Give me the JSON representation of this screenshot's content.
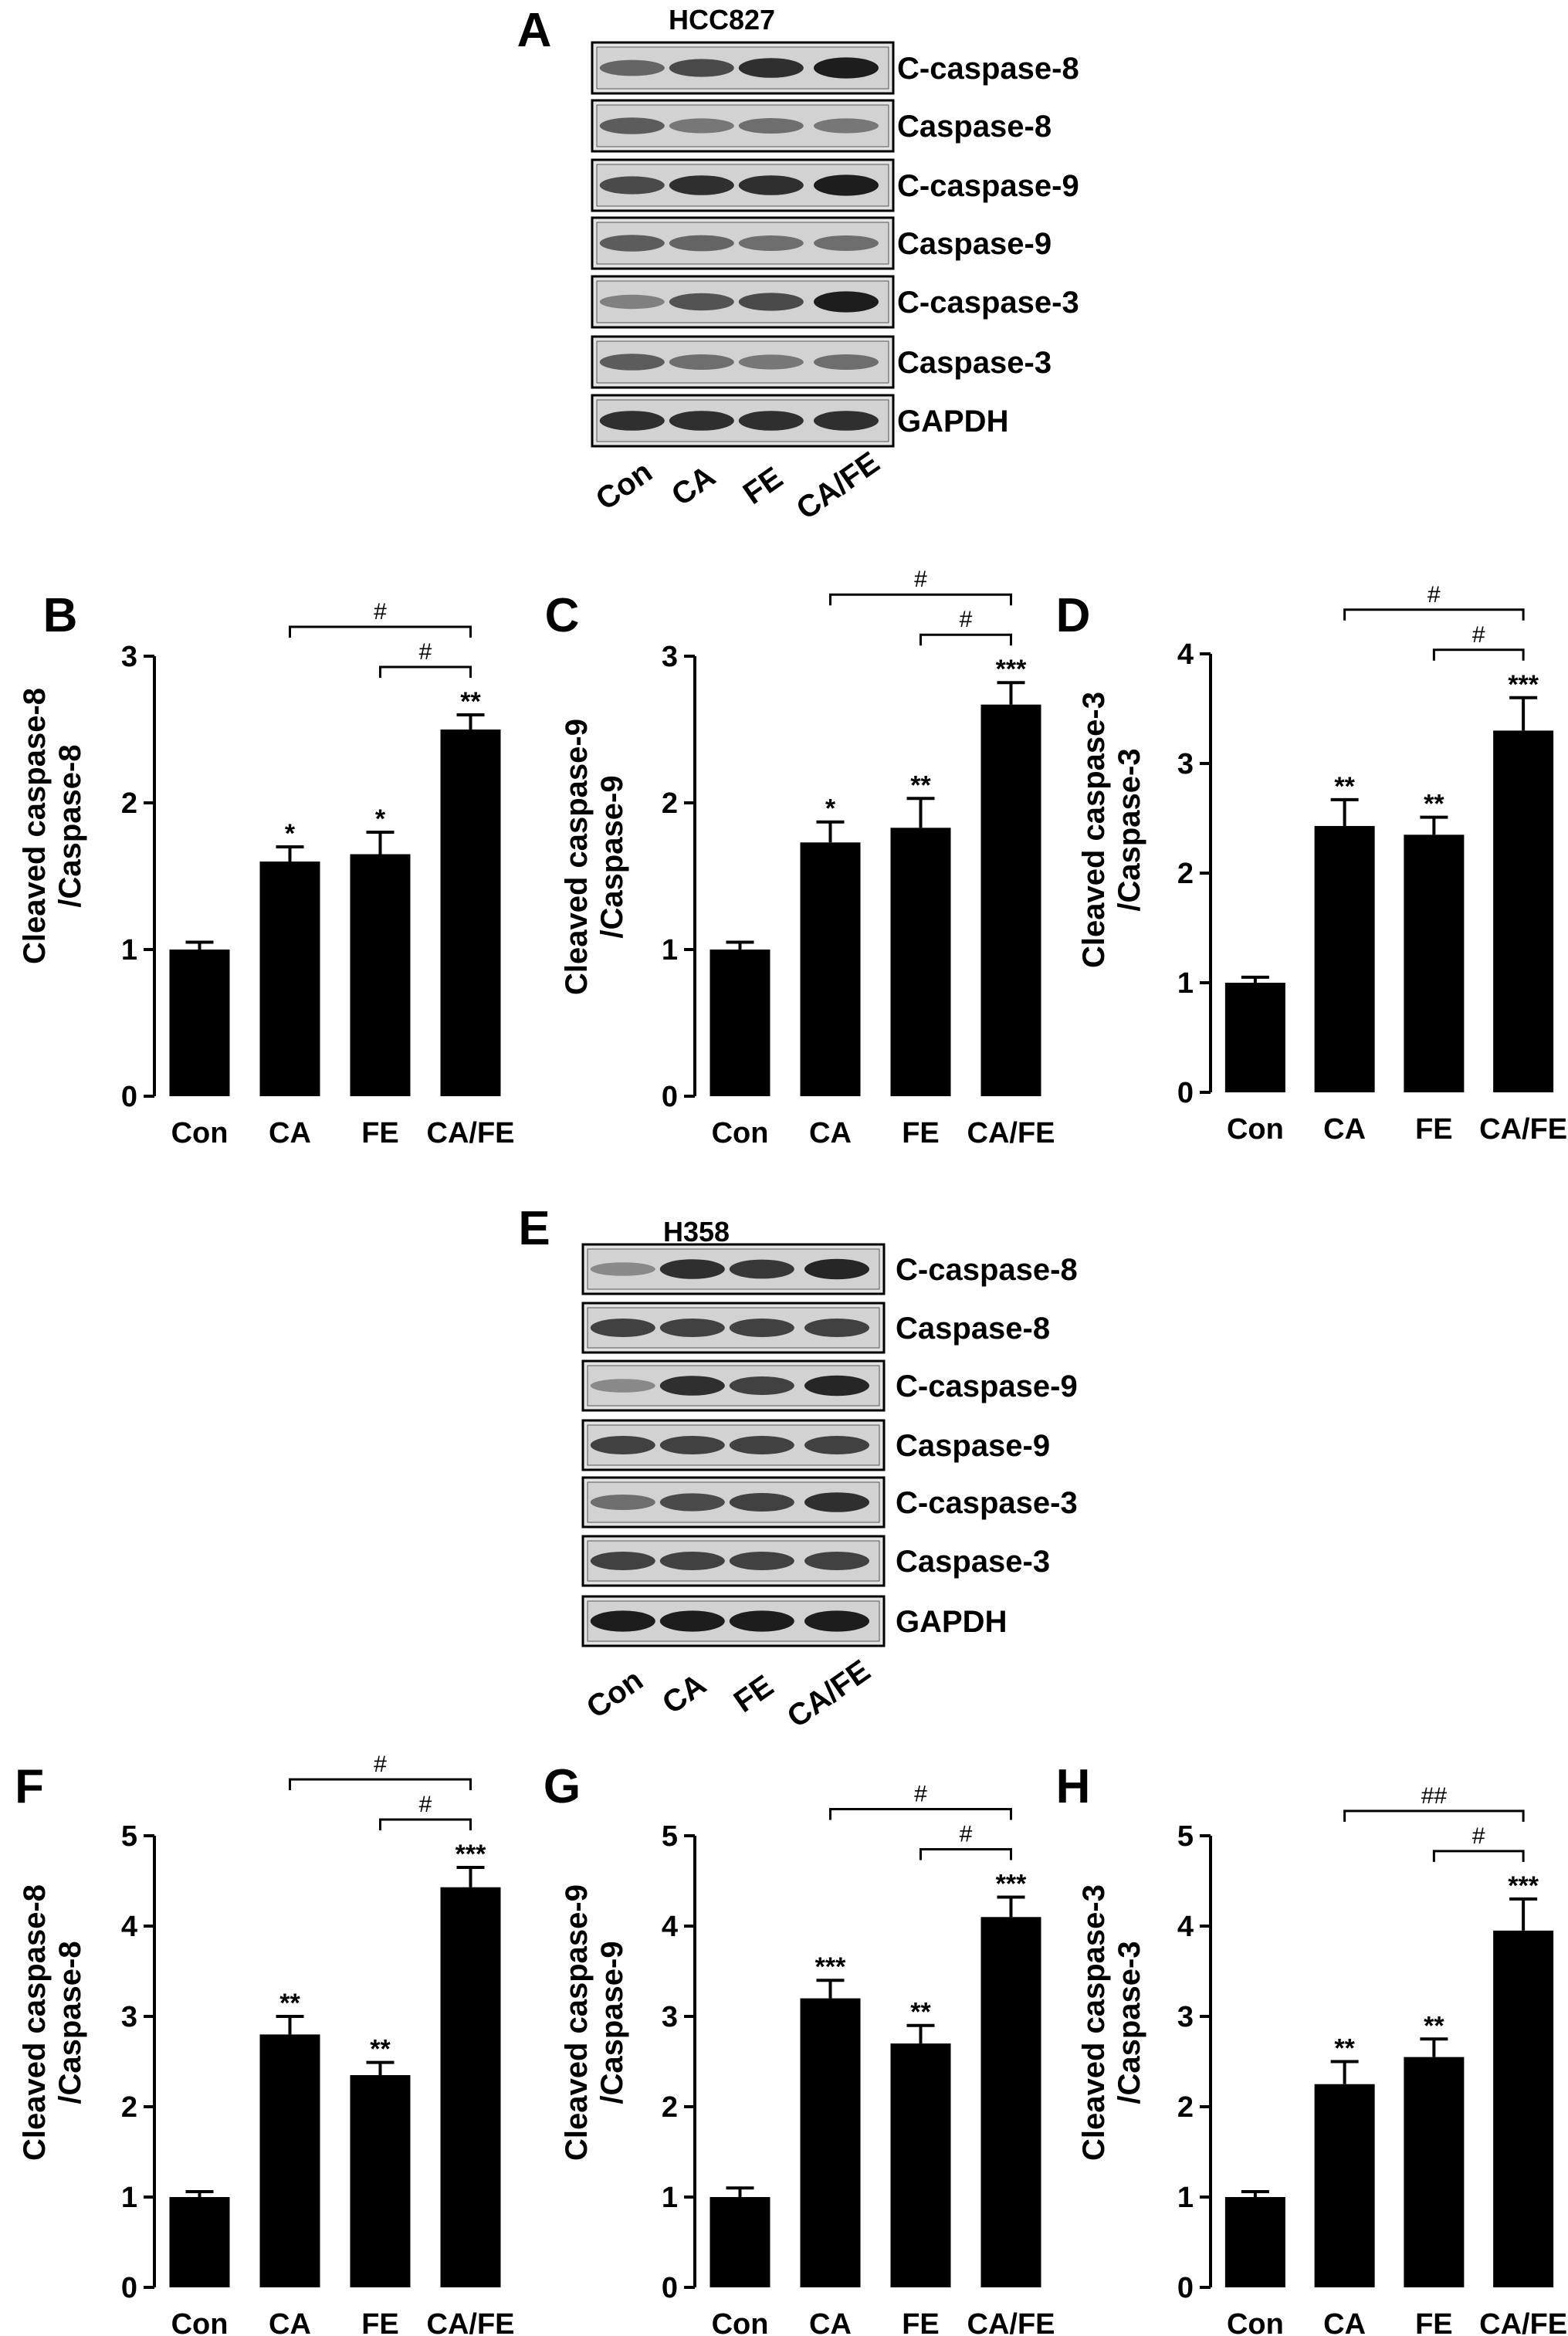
{
  "blots": [
    {
      "id": "A",
      "panel_label": "A",
      "cell_line": "HCC827",
      "rows": [
        "C-caspase-8",
        "Caspase-8",
        "C-caspase-9",
        "Caspase-9",
        "C-caspase-3",
        "Caspase-3",
        "GAPDH"
      ],
      "lanes": [
        "Con",
        "CA",
        "FE",
        "CA/FE"
      ],
      "intensity": [
        [
          0.55,
          0.7,
          0.85,
          0.95
        ],
        [
          0.6,
          0.45,
          0.5,
          0.45
        ],
        [
          0.7,
          0.85,
          0.85,
          0.95
        ],
        [
          0.6,
          0.55,
          0.5,
          0.5
        ],
        [
          0.4,
          0.65,
          0.7,
          0.95
        ],
        [
          0.6,
          0.5,
          0.45,
          0.5
        ],
        [
          0.85,
          0.85,
          0.85,
          0.85
        ]
      ]
    },
    {
      "id": "E",
      "panel_label": "E",
      "cell_line": "H358",
      "rows": [
        "C-caspase-8",
        "Caspase-8",
        "C-caspase-9",
        "Caspase-9",
        "C-caspase-3",
        "Caspase-3",
        "GAPDH"
      ],
      "lanes": [
        "Con",
        "CA",
        "FE",
        "CA/FE"
      ],
      "intensity": [
        [
          0.35,
          0.85,
          0.8,
          0.9
        ],
        [
          0.75,
          0.75,
          0.75,
          0.75
        ],
        [
          0.35,
          0.85,
          0.75,
          0.9
        ],
        [
          0.75,
          0.75,
          0.75,
          0.75
        ],
        [
          0.5,
          0.7,
          0.75,
          0.85
        ],
        [
          0.75,
          0.75,
          0.75,
          0.75
        ],
        [
          0.95,
          0.95,
          0.95,
          0.95
        ]
      ]
    }
  ],
  "chart_data": [
    {
      "panel_label": "B",
      "type": "bar",
      "categories": [
        "Con",
        "CA",
        "FE",
        "CA/FE"
      ],
      "values": [
        1.0,
        1.6,
        1.65,
        2.5
      ],
      "errors": [
        0.05,
        0.1,
        0.15,
        0.1
      ],
      "significance": [
        "",
        "*",
        "*",
        "**"
      ],
      "ylabel": [
        "Cleaved caspase-8",
        "/Caspase-8"
      ],
      "ylim": [
        0,
        3
      ],
      "yticks": [
        0,
        1,
        2,
        3
      ],
      "comparisons": [
        {
          "from": "CA",
          "to": "CA/FE",
          "label": "#"
        },
        {
          "from": "FE",
          "to": "CA/FE",
          "label": "#"
        }
      ]
    },
    {
      "panel_label": "C",
      "type": "bar",
      "categories": [
        "Con",
        "CA",
        "FE",
        "CA/FE"
      ],
      "values": [
        1.0,
        1.73,
        1.83,
        2.67
      ],
      "errors": [
        0.05,
        0.14,
        0.2,
        0.15
      ],
      "significance": [
        "",
        "*",
        "**",
        "***"
      ],
      "ylabel": [
        "Cleaved caspase-9",
        "/Caspase-9"
      ],
      "ylim": [
        0,
        3
      ],
      "yticks": [
        0,
        1,
        2,
        3
      ],
      "comparisons": [
        {
          "from": "CA",
          "to": "CA/FE",
          "label": "#"
        },
        {
          "from": "FE",
          "to": "CA/FE",
          "label": "#"
        }
      ]
    },
    {
      "panel_label": "D",
      "type": "bar",
      "categories": [
        "Con",
        "CA",
        "FE",
        "CA/FE"
      ],
      "values": [
        1.0,
        2.43,
        2.35,
        3.3
      ],
      "errors": [
        0.05,
        0.24,
        0.16,
        0.3
      ],
      "significance": [
        "",
        "**",
        "**",
        "***"
      ],
      "ylabel": [
        "Cleaved caspase-3",
        "/Caspase-3"
      ],
      "ylim": [
        0,
        4
      ],
      "yticks": [
        0,
        1,
        2,
        3,
        4
      ],
      "comparisons": [
        {
          "from": "CA",
          "to": "CA/FE",
          "label": "#"
        },
        {
          "from": "FE",
          "to": "CA/FE",
          "label": "#"
        }
      ]
    },
    {
      "panel_label": "F",
      "type": "bar",
      "categories": [
        "Con",
        "CA",
        "FE",
        "CA/FE"
      ],
      "values": [
        1.0,
        2.8,
        2.35,
        4.43
      ],
      "errors": [
        0.06,
        0.2,
        0.14,
        0.22
      ],
      "significance": [
        "",
        "**",
        "**",
        "***"
      ],
      "ylabel": [
        "Cleaved caspase-8",
        "/Caspase-8"
      ],
      "ylim": [
        0,
        5
      ],
      "yticks": [
        0,
        1,
        2,
        3,
        4,
        5
      ],
      "comparisons": [
        {
          "from": "CA",
          "to": "CA/FE",
          "label": "#"
        },
        {
          "from": "FE",
          "to": "CA/FE",
          "label": "#"
        }
      ]
    },
    {
      "panel_label": "G",
      "type": "bar",
      "categories": [
        "Con",
        "CA",
        "FE",
        "CA/FE"
      ],
      "values": [
        1.0,
        3.2,
        2.7,
        4.1
      ],
      "errors": [
        0.1,
        0.2,
        0.2,
        0.22
      ],
      "significance": [
        "",
        "***",
        "**",
        "***"
      ],
      "ylabel": [
        "Cleaved caspase-9",
        "/Caspase-9"
      ],
      "ylim": [
        0,
        5
      ],
      "yticks": [
        0,
        1,
        2,
        3,
        4,
        5
      ],
      "comparisons": [
        {
          "from": "CA",
          "to": "CA/FE",
          "label": "#"
        },
        {
          "from": "FE",
          "to": "CA/FE",
          "label": "#"
        }
      ]
    },
    {
      "panel_label": "H",
      "type": "bar",
      "categories": [
        "Con",
        "CA",
        "FE",
        "CA/FE"
      ],
      "values": [
        1.0,
        2.25,
        2.55,
        3.95
      ],
      "errors": [
        0.06,
        0.25,
        0.2,
        0.35
      ],
      "significance": [
        "",
        "**",
        "**",
        "***"
      ],
      "ylabel": [
        "Cleaved caspase-3",
        "/Caspase-3"
      ],
      "ylim": [
        0,
        5
      ],
      "yticks": [
        0,
        1,
        2,
        3,
        4,
        5
      ],
      "comparisons": [
        {
          "from": "CA",
          "to": "CA/FE",
          "label": "##"
        },
        {
          "from": "FE",
          "to": "CA/FE",
          "label": "#"
        }
      ]
    }
  ]
}
